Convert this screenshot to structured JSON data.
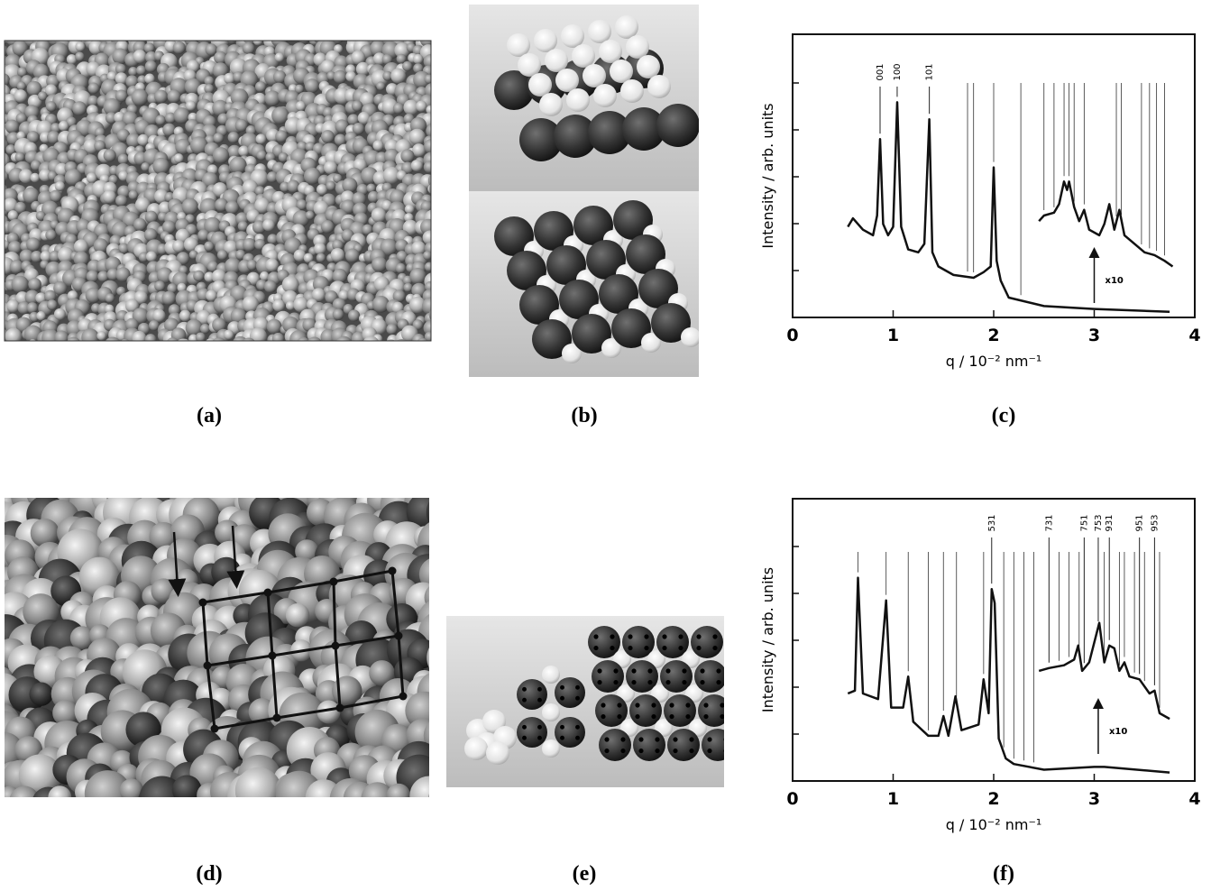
{
  "panels": [
    {
      "label": "(a)"
    },
    {
      "label": "(b)"
    },
    {
      "label": "(c)"
    },
    {
      "label": "(d)"
    },
    {
      "label": "(e)"
    },
    {
      "label": "(f)"
    }
  ],
  "chart_data": [
    {
      "type": "line",
      "x_label": "q / 10⁻² nm⁻¹",
      "y_label": "Intensity / arb. units",
      "xlim": [
        0,
        4
      ],
      "xticks": [
        0,
        1,
        2,
        3,
        4
      ],
      "ylim": [
        0,
        100
      ],
      "color": "#111111",
      "series": [
        {
          "x": [
            0.55,
            0.6,
            0.7,
            0.8,
            0.84,
            0.87,
            0.9,
            0.95,
            1.0,
            1.04,
            1.08,
            1.15,
            1.25,
            1.31,
            1.36,
            1.39,
            1.45,
            1.6,
            1.8,
            1.9,
            1.97,
            2.0,
            2.03,
            2.07,
            2.15,
            2.5,
            3.0,
            3.75
          ],
          "values": [
            32,
            35,
            31,
            29,
            36,
            63,
            33,
            29,
            32,
            76,
            32,
            24,
            23,
            26,
            70,
            23,
            18,
            15,
            14,
            16,
            18,
            53,
            20,
            13,
            7,
            4,
            3,
            2
          ]
        },
        {
          "x": [
            2.45,
            2.5,
            2.6,
            2.65,
            2.7,
            2.73,
            2.75,
            2.8,
            2.85,
            2.9,
            2.95,
            3.05,
            3.1,
            3.15,
            3.2,
            3.25,
            3.3,
            3.5,
            3.6,
            3.7,
            3.78
          ],
          "values": [
            34,
            36,
            37,
            40,
            48,
            45,
            48,
            39,
            34,
            38,
            31,
            29,
            33,
            40,
            31,
            38,
            29,
            23,
            22,
            20,
            18
          ]
        }
      ],
      "reflections": [
        {
          "label": "001",
          "x": 0.87
        },
        {
          "label": "100",
          "x": 1.04
        },
        {
          "label": "101",
          "x": 1.36
        }
      ],
      "reference_lines": [
        1.74,
        1.8,
        2.0,
        2.27,
        2.5,
        2.6,
        2.7,
        2.75,
        2.8,
        2.9,
        3.22,
        3.27,
        3.47,
        3.55,
        3.62,
        3.7
      ],
      "annotation": "x10"
    },
    {
      "type": "line",
      "x_label": "q / 10⁻² nm⁻¹",
      "y_label": "Intensity / arb. units",
      "xlim": [
        0,
        4
      ],
      "xticks": [
        0,
        1,
        2,
        3,
        4
      ],
      "ylim": [
        0,
        100
      ],
      "color": "#111111",
      "series": [
        {
          "x": [
            0.55,
            0.62,
            0.65,
            0.7,
            0.85,
            0.93,
            0.98,
            1.1,
            1.15,
            1.2,
            1.35,
            1.45,
            1.5,
            1.55,
            1.62,
            1.68,
            1.85,
            1.9,
            1.95,
            1.98,
            2.01,
            2.05,
            2.12,
            2.2,
            2.5,
            3.0,
            3.1,
            3.75
          ],
          "values": [
            31,
            32,
            72,
            31,
            29,
            64,
            26,
            26,
            37,
            21,
            16,
            16,
            23,
            16,
            30,
            18,
            20,
            36,
            24,
            68,
            63,
            15,
            8,
            6,
            4,
            5,
            5,
            3
          ]
        },
        {
          "x": [
            2.45,
            2.55,
            2.7,
            2.8,
            2.84,
            2.88,
            2.95,
            3.05,
            3.1,
            3.15,
            3.2,
            3.25,
            3.3,
            3.35,
            3.45,
            3.55,
            3.6,
            3.65,
            3.75
          ],
          "values": [
            39,
            40,
            41,
            43,
            48,
            39,
            42,
            56,
            42,
            48,
            47,
            39,
            42,
            37,
            36,
            31,
            32,
            24,
            22
          ]
        }
      ],
      "reflections": [
        {
          "label": "531",
          "x": 1.98
        },
        {
          "label": "731",
          "x": 2.55
        },
        {
          "label": "751",
          "x": 2.9
        },
        {
          "label": "753",
          "x": 3.04
        },
        {
          "label": "931",
          "x": 3.15
        },
        {
          "label": "951",
          "x": 3.45
        },
        {
          "label": "953",
          "x": 3.6
        }
      ],
      "reference_lines": [
        0.65,
        0.93,
        1.15,
        1.35,
        1.5,
        1.63,
        1.9,
        2.1,
        2.2,
        2.3,
        2.4,
        2.65,
        2.75,
        2.85,
        3.1,
        3.25,
        3.3,
        3.4,
        3.5,
        3.65
      ],
      "annotation": "x10"
    }
  ]
}
